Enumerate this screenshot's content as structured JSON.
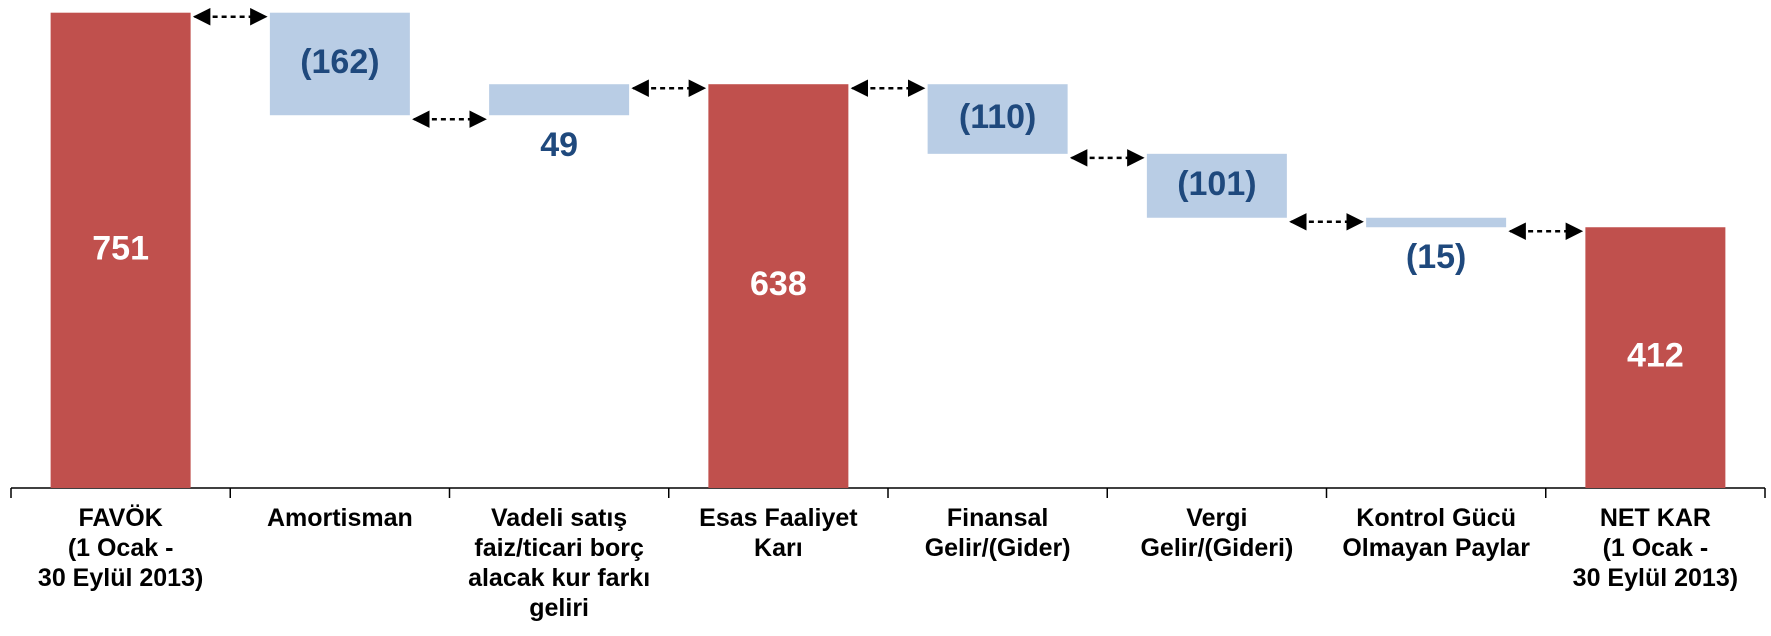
{
  "chart_data": {
    "type": "waterfall",
    "categories": [
      "FAVÖK\n(1 Ocak -\n30 Eylül 2013)",
      "Amortisman",
      "Vadeli satış\nfaiz/ticari borç\nalacak kur farkı\ngeliri",
      "Esas Faaliyet\nKarı",
      "Finansal\nGelir/(Gider)",
      "Vergi\nGelir/(Gideri)",
      "Kontrol Gücü\nOlmayan Paylar",
      "NET KAR\n(1 Ocak -\n30 Eylül 2013)"
    ],
    "values": [
      751,
      -162,
      49,
      638,
      -110,
      -101,
      -15,
      412
    ],
    "value_labels": [
      "751",
      "(162)",
      "49",
      "638",
      "(110)",
      "(101)",
      "(15)",
      "412"
    ],
    "is_total": [
      true,
      false,
      false,
      true,
      false,
      false,
      false,
      true
    ],
    "total_color": "#c0504d",
    "change_color": "#b9cde5",
    "total_label_color": "#ffffff",
    "change_label_color": "#1f497d",
    "ylim": [
      0,
      760
    ]
  }
}
